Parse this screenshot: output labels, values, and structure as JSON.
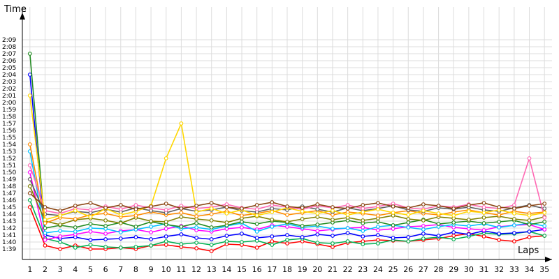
{
  "chart_data": {
    "type": "line",
    "ylabel": "Time",
    "xlabel": "Laps",
    "x": [
      1,
      2,
      3,
      4,
      5,
      6,
      7,
      8,
      9,
      10,
      11,
      12,
      13,
      14,
      15,
      16,
      17,
      18,
      19,
      20,
      21,
      22,
      23,
      24,
      25,
      26,
      27,
      28,
      29,
      30,
      31,
      32,
      33,
      34,
      35
    ],
    "y_ticks": [
      "1:39",
      "1:40",
      "1:41",
      "1:42",
      "1:43",
      "1:44",
      "1:45",
      "1:46",
      "1:47",
      "1:48",
      "1:49",
      "1:50",
      "1:51",
      "1:52",
      "1:53",
      "1:54",
      "1:55",
      "1:56",
      "1:57",
      "1:58",
      "1:59",
      "2:00",
      "2:01",
      "2:02",
      "2:03",
      "2:04",
      "2:05",
      "2:06",
      "2:07",
      "2:08",
      "2:09"
    ],
    "ylim_seconds": [
      98,
      130
    ],
    "xlim": [
      0.5,
      35.5
    ],
    "grid": true,
    "legend": "none",
    "series": [
      {
        "color": "#ff0000",
        "values": [
          105,
          99.5,
          99,
          99.5,
          99,
          99,
          99.2,
          99,
          99.5,
          99.6,
          99.3,
          99.1,
          98.7,
          99.7,
          99.6,
          99.2,
          100.1,
          99.8,
          100.1,
          99.7,
          99.3,
          99.9,
          100.1,
          100.3,
          100.2,
          100.1,
          100.3,
          100.5,
          100.9,
          101.2,
          100.8,
          100.3,
          100.1,
          100.7,
          100.9
        ]
      },
      {
        "color": "#00b050",
        "values": [
          106,
          100.5,
          100,
          99.2,
          99.6,
          99.3,
          99.2,
          99.3,
          99.5,
          100.1,
          99.7,
          99.9,
          99.6,
          100.1,
          100,
          100.2,
          99.6,
          100.3,
          100.5,
          99.9,
          99.8,
          100.1,
          99.7,
          99.8,
          100.3,
          100.1,
          100.5,
          100.7,
          100.4,
          100.8,
          101.3,
          101.1,
          101.2,
          101.5,
          100.9
        ]
      },
      {
        "color": "#0000ff",
        "values": [
          124,
          101,
          100.5,
          100.7,
          100.3,
          100.4,
          100.5,
          100.7,
          100.4,
          100.8,
          101.1,
          100.6,
          100.4,
          100.9,
          101.2,
          100.6,
          100.8,
          101,
          100.7,
          101.1,
          100.9,
          101.3,
          100.8,
          101,
          100.6,
          100.7,
          101.2,
          100.9,
          101.4,
          101.1,
          101.6,
          101.2,
          101.3,
          101.5,
          101.8
        ]
      },
      {
        "color": "#ff00ff",
        "values": [
          110,
          100.3,
          100.8,
          101.1,
          101.5,
          101.2,
          101.6,
          101.8,
          101.4,
          101.9,
          102.3,
          101.7,
          101.5,
          101.9,
          102.1,
          101.8,
          102.4,
          102.2,
          101.9,
          101.6,
          101.8,
          102,
          102.1,
          101.7,
          101.9,
          102.2,
          102.3,
          102.5,
          102.1,
          101.9,
          101.7,
          102.2,
          102.4,
          102.5,
          101.8
        ]
      },
      {
        "color": "#00c0ff",
        "values": [
          113,
          101.3,
          101.6,
          101.5,
          102,
          101.9,
          101.4,
          101.8,
          102.2,
          102.6,
          101.9,
          102.1,
          101.8,
          102.3,
          102.7,
          101.5,
          102.2,
          102.6,
          102.1,
          102.3,
          101.9,
          102,
          101.6,
          102.2,
          102.4,
          102.1,
          101.8,
          102.2,
          102.5,
          102.3,
          102.6,
          102.1,
          102.4,
          102.7,
          102.3
        ]
      },
      {
        "color": "#228b22",
        "values": [
          127,
          102,
          102.4,
          102.1,
          102.6,
          102.3,
          102.8,
          102.2,
          102.9,
          102.5,
          102.2,
          102.7,
          102.1,
          102.4,
          102.9,
          102.6,
          103,
          102.8,
          102.3,
          102.5,
          102.8,
          103.1,
          102.7,
          102.9,
          102.4,
          102.8,
          103.2,
          102.6,
          102.8,
          103,
          102.7,
          102.9,
          103.1,
          102.5,
          102.9
        ]
      },
      {
        "color": "#808000",
        "values": [
          108,
          103,
          102.5,
          103.2,
          103.4,
          103.1,
          102.7,
          103.5,
          103,
          102.9,
          103.6,
          103.3,
          103.1,
          102.8,
          103.4,
          103.7,
          103.2,
          102.9,
          103.3,
          103.6,
          103.2,
          103.5,
          103.1,
          103.4,
          103.8,
          103.3,
          103.1,
          103.6,
          103.4,
          103.2,
          103.5,
          103.7,
          103.3,
          103.1,
          103.6
        ]
      },
      {
        "color": "#ff8c00",
        "values": [
          114,
          102.7,
          103.5,
          103.3,
          103.9,
          104.1,
          103.6,
          103.8,
          104.3,
          103.9,
          104.2,
          103.7,
          104,
          104.4,
          103.8,
          104.1,
          104.5,
          103.9,
          104.2,
          104.5,
          103.9,
          104.3,
          104.1,
          103.8,
          104.2,
          104.5,
          104.1,
          103.9,
          104.3,
          104.6,
          104.2,
          103.9,
          104.4,
          104.1,
          104.3
        ]
      },
      {
        "color": "#606060",
        "values": [
          109,
          104,
          103.8,
          104.4,
          104.2,
          104.7,
          104.3,
          104.9,
          104.5,
          104.2,
          104.8,
          104.4,
          104.6,
          105,
          104.5,
          104.3,
          104.8,
          104.6,
          105.1,
          104.7,
          104.3,
          104.9,
          104.5,
          104.8,
          105.2,
          104.6,
          104.4,
          104.9,
          104.7,
          105,
          104.6,
          104.4,
          104.9,
          105.3,
          104.8
        ]
      },
      {
        "color": "#ff69b4",
        "values": [
          111,
          104.5,
          104.1,
          104.8,
          104.6,
          105.1,
          104.7,
          105.3,
          104.9,
          104.6,
          105.2,
          104.8,
          105,
          105.4,
          104.9,
          104.7,
          105.3,
          105,
          104.7,
          105.2,
          104.9,
          105.3,
          104.8,
          105.1,
          105.5,
          104.9,
          104.7,
          105.2,
          105,
          105.4,
          105,
          104.8,
          105.3,
          112,
          103.5
        ]
      },
      {
        "color": "#ffd700",
        "values": [
          121,
          103.2,
          103.8,
          104.5,
          103.6,
          104.8,
          103.9,
          104.4,
          105.2,
          112,
          117,
          104.3,
          104.8,
          104.1,
          104.6,
          103.8,
          104.3,
          104.9,
          104.4,
          104.1,
          104.5,
          103.9,
          104.3,
          104.7,
          104.2,
          103.9,
          104.5,
          104.1,
          103.8,
          104.4,
          104.2,
          104.6,
          104.1,
          103.8,
          104.2
        ]
      },
      {
        "color": "#8b4513",
        "values": [
          107,
          105,
          104.5,
          105.2,
          105.6,
          104.9,
          105.3,
          104.7,
          105.1,
          105.5,
          104.8,
          105.2,
          105.6,
          105,
          104.8,
          105.3,
          105.7,
          105.1,
          104.9,
          105.4,
          105,
          104.8,
          105.3,
          105.6,
          105.1,
          104.9,
          105.4,
          105.2,
          104.8,
          105.3,
          105.6,
          105,
          104.8,
          105.2,
          105.5
        ]
      }
    ]
  }
}
